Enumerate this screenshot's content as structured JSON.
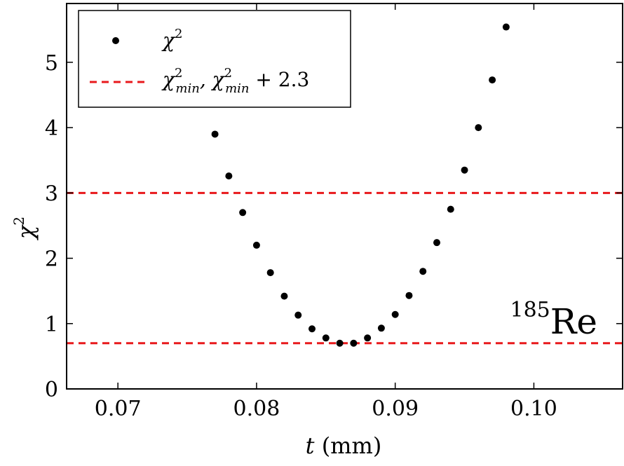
{
  "chart_data": {
    "type": "scatter",
    "xlabel": {
      "var": "t",
      "unit": " (mm)"
    },
    "ylabel": {
      "base": "χ",
      "sup": "2"
    },
    "xlim": [
      0.0663,
      0.1064
    ],
    "ylim": [
      0,
      5.9
    ],
    "xticks": [
      {
        "value": 0.07,
        "label": "0.07"
      },
      {
        "value": 0.08,
        "label": "0.08"
      },
      {
        "value": 0.09,
        "label": "0.09"
      },
      {
        "value": 0.1,
        "label": "0.10"
      }
    ],
    "yticks": [
      {
        "value": 0,
        "label": "0"
      },
      {
        "value": 1,
        "label": "1"
      },
      {
        "value": 2,
        "label": "2"
      },
      {
        "value": 3,
        "label": "3"
      },
      {
        "value": 4,
        "label": "4"
      },
      {
        "value": 5,
        "label": "5"
      }
    ],
    "series": [
      {
        "marker": "dot",
        "color": "#000000",
        "x": [
          0.077,
          0.078,
          0.079,
          0.08,
          0.081,
          0.082,
          0.083,
          0.084,
          0.085,
          0.086,
          0.087,
          0.088,
          0.089,
          0.09,
          0.091,
          0.092,
          0.093,
          0.094,
          0.095,
          0.096,
          0.097,
          0.098
        ],
        "y": [
          3.9,
          3.26,
          2.7,
          2.2,
          1.78,
          1.42,
          1.13,
          0.92,
          0.78,
          0.7,
          0.7,
          0.78,
          0.93,
          1.14,
          1.43,
          1.8,
          2.24,
          2.75,
          3.35,
          4.0,
          4.73,
          5.54
        ]
      }
    ],
    "hlines": [
      {
        "y": 0.7,
        "style": "dashed",
        "color": "#e8191c"
      },
      {
        "y": 3.0,
        "style": "dashed",
        "color": "#e8191c"
      }
    ],
    "legend": {
      "position": "top-left",
      "entries": [
        {
          "kind": "dot",
          "text": "χ",
          "sup": "2"
        },
        {
          "kind": "dashed",
          "text": "χ",
          "sup": "2",
          "sub": "min",
          "text2": ", χ",
          "sup2": "2",
          "sub2": "min",
          "text3": " + 2.3"
        }
      ]
    },
    "annotation": {
      "sup": "185",
      "text": "Re",
      "position": "lower-right"
    },
    "grid": false
  }
}
